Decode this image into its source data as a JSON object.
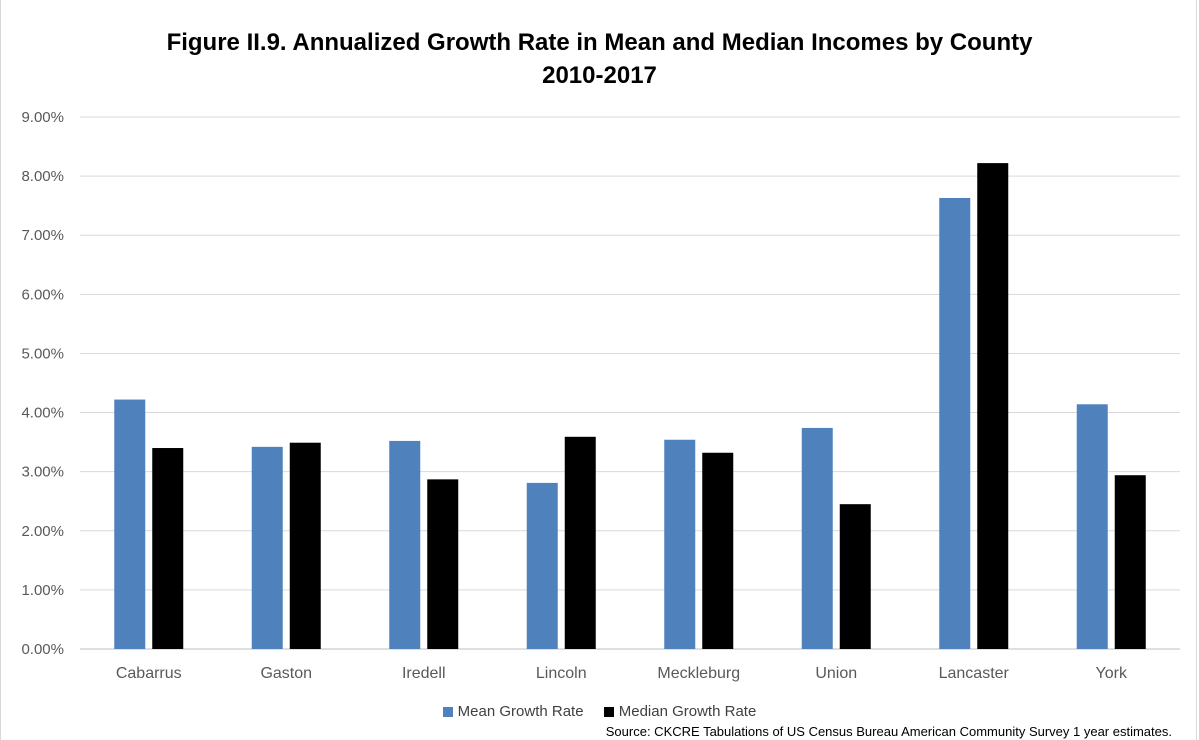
{
  "chart_data": {
    "type": "bar",
    "title_line1": "Figure II.9.  Annualized Growth Rate in Mean and Median Incomes by County",
    "title_line2": "2010-2017",
    "categories": [
      "Cabarrus",
      "Gaston",
      "Iredell",
      "Lincoln",
      "Meckleburg",
      "Union",
      "Lancaster",
      "York"
    ],
    "series": [
      {
        "name": "Mean Growth Rate",
        "color": "#4f81bd",
        "values": [
          4.22,
          3.42,
          3.52,
          2.81,
          3.54,
          3.74,
          7.63,
          4.14
        ]
      },
      {
        "name": "Median Growth Rate",
        "color": "#000000",
        "values": [
          3.4,
          3.49,
          2.87,
          3.59,
          3.32,
          2.45,
          8.22,
          2.94
        ]
      }
    ],
    "yticks": [
      "0.00%",
      "1.00%",
      "2.00%",
      "3.00%",
      "4.00%",
      "5.00%",
      "6.00%",
      "7.00%",
      "8.00%",
      "9.00%"
    ],
    "ylim": [
      0,
      9
    ],
    "grid": true,
    "legend_position": "bottom",
    "source": "Source: CKCRE Tabulations of US Census Bureau American Community Survey 1 year estimates."
  }
}
